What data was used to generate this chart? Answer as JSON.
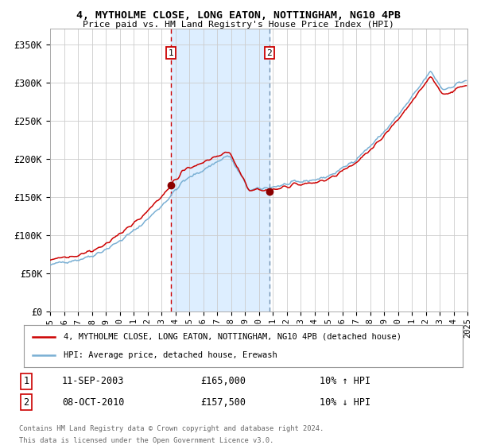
{
  "title": "4, MYTHOLME CLOSE, LONG EATON, NOTTINGHAM, NG10 4PB",
  "subtitle": "Price paid vs. HM Land Registry's House Price Index (HPI)",
  "legend_line1": "4, MYTHOLME CLOSE, LONG EATON, NOTTINGHAM, NG10 4PB (detached house)",
  "legend_line2": "HPI: Average price, detached house, Erewash",
  "footnote1": "Contains HM Land Registry data © Crown copyright and database right 2024.",
  "footnote2": "This data is licensed under the Open Government Licence v3.0.",
  "transaction1_label": "1",
  "transaction1_date": "11-SEP-2003",
  "transaction1_price": 165000,
  "transaction1_hpi_pct": "10% ↑ HPI",
  "transaction2_label": "2",
  "transaction2_date": "08-OCT-2010",
  "transaction2_price": 157500,
  "transaction2_hpi_pct": "10% ↓ HPI",
  "hpi_color": "#7ab0d4",
  "property_color": "#cc0000",
  "dot_color": "#8b0000",
  "vline1_color": "#cc0000",
  "vline2_color": "#7090b0",
  "shade_color": "#ddeeff",
  "grid_color": "#cccccc",
  "background_color": "#ffffff",
  "ylim": [
    0,
    370000
  ],
  "yticks": [
    0,
    50000,
    100000,
    150000,
    200000,
    250000,
    300000,
    350000
  ],
  "ytick_labels": [
    "£0",
    "£50K",
    "£100K",
    "£150K",
    "£200K",
    "£250K",
    "£300K",
    "£350K"
  ],
  "transaction1_year": 2003.7,
  "transaction2_year": 2010.77
}
